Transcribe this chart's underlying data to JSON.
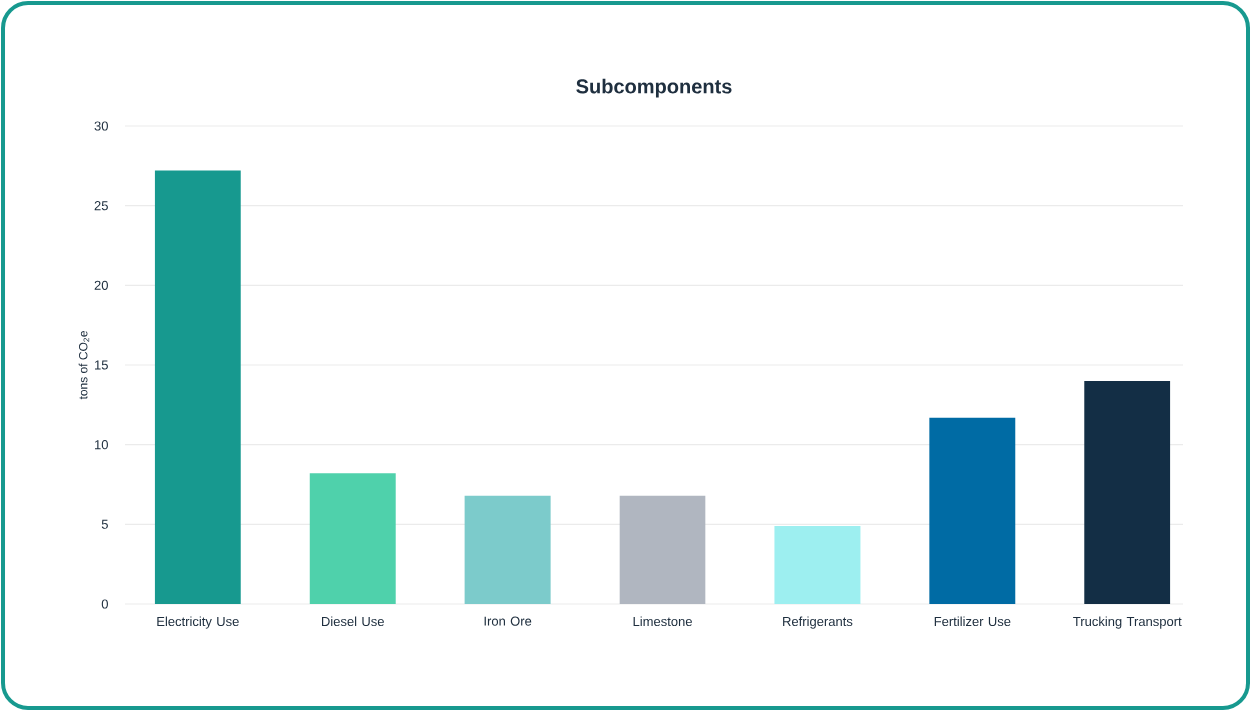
{
  "chart_data": {
    "type": "bar",
    "title": "Subcomponents",
    "ylabel": "tons of CO$_{2}$e",
    "categories": [
      "Electricity Use",
      "Diesel Use",
      "Iron Ore",
      "Limestone",
      "Refrigerants",
      "Fertilizer Use",
      "Trucking Transport"
    ],
    "values": [
      27.2,
      8.2,
      6.8,
      6.8,
      4.9,
      11.7,
      14.0
    ],
    "colors": [
      "#17998f",
      "#4fd1ab",
      "#7ccbcb",
      "#b0b6c0",
      "#9deff0",
      "#006ba4",
      "#132e45"
    ],
    "ylim": [
      0,
      30
    ],
    "yticks": [
      0,
      5,
      10,
      15,
      20,
      25,
      30
    ],
    "grid": "y"
  }
}
